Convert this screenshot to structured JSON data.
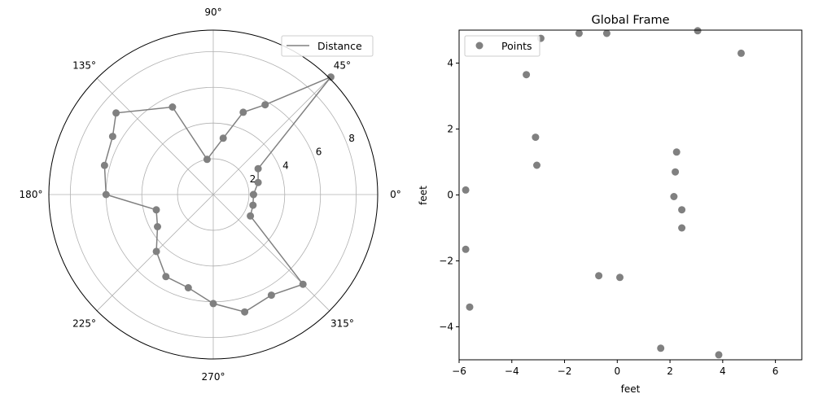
{
  "chart_data": [
    {
      "type": "line",
      "projection": "polar",
      "legend": {
        "label": "Distance",
        "placement": "top-right"
      },
      "theta_labels": [
        "0°",
        "45°",
        "90°",
        "135°",
        "180°",
        "225°",
        "270°",
        "315°"
      ],
      "r_ticks": [
        2,
        4,
        6,
        8
      ],
      "r_tick_labels": [
        "2",
        "4",
        "6",
        "8"
      ],
      "rlim": [
        0,
        9.2
      ],
      "grid": true,
      "color": "#808080",
      "points": [
        {
          "theta_deg": 0,
          "r": 2.25
        },
        {
          "theta_deg": 15,
          "r": 2.6
        },
        {
          "theta_deg": 30,
          "r": 2.9
        },
        {
          "theta_deg": 45,
          "r": 9.3
        },
        {
          "theta_deg": 60,
          "r": 5.8
        },
        {
          "theta_deg": 70,
          "r": 4.9
        },
        {
          "theta_deg": 80,
          "r": 3.2
        },
        {
          "theta_deg": 100,
          "r": 2.0
        },
        {
          "theta_deg": 115,
          "r": 5.4
        },
        {
          "theta_deg": 140,
          "r": 7.1
        },
        {
          "theta_deg": 150,
          "r": 6.5
        },
        {
          "theta_deg": 165,
          "r": 6.3
        },
        {
          "theta_deg": 180,
          "r": 6.0
        },
        {
          "theta_deg": 195,
          "r": 3.3
        },
        {
          "theta_deg": 210,
          "r": 3.6
        },
        {
          "theta_deg": 225,
          "r": 4.5
        },
        {
          "theta_deg": 240,
          "r": 5.3
        },
        {
          "theta_deg": 255,
          "r": 5.4
        },
        {
          "theta_deg": 270,
          "r": 6.1
        },
        {
          "theta_deg": 285,
          "r": 6.8
        },
        {
          "theta_deg": 300,
          "r": 6.5
        },
        {
          "theta_deg": 315,
          "r": 7.1
        },
        {
          "theta_deg": 330,
          "r": 2.4
        },
        {
          "theta_deg": 345,
          "r": 2.3
        },
        {
          "theta_deg": 360,
          "r": 2.25
        }
      ]
    },
    {
      "type": "scatter",
      "title": "Global Frame",
      "xlabel": "feet",
      "ylabel": "feet",
      "xlim": [
        -6,
        7
      ],
      "ylim": [
        -5,
        5
      ],
      "x_ticks": [
        -6,
        -4,
        -2,
        0,
        2,
        4,
        6
      ],
      "x_tick_labels": [
        "−6",
        "−4",
        "−2",
        "0",
        "2",
        "4",
        "6"
      ],
      "y_ticks": [
        -4,
        -2,
        0,
        2,
        4
      ],
      "y_tick_labels": [
        "−4",
        "−2",
        "0",
        "2",
        "4"
      ],
      "legend": {
        "label": "Points",
        "placement": "top-left"
      },
      "color": "#808080",
      "points": [
        {
          "x": -2.9,
          "y": 4.75
        },
        {
          "x": -1.45,
          "y": 4.9
        },
        {
          "x": -0.4,
          "y": 4.9
        },
        {
          "x": 3.05,
          "y": 4.98
        },
        {
          "x": 4.7,
          "y": 4.3
        },
        {
          "x": -3.45,
          "y": 3.65
        },
        {
          "x": -3.1,
          "y": 1.75
        },
        {
          "x": -3.05,
          "y": 0.9
        },
        {
          "x": 2.25,
          "y": 1.3
        },
        {
          "x": 2.2,
          "y": 0.7
        },
        {
          "x": 2.15,
          "y": -0.05
        },
        {
          "x": 2.45,
          "y": -0.45
        },
        {
          "x": 2.45,
          "y": -1.0
        },
        {
          "x": -5.75,
          "y": 0.15
        },
        {
          "x": -5.75,
          "y": -1.65
        },
        {
          "x": -5.6,
          "y": -3.4
        },
        {
          "x": -0.7,
          "y": -2.45
        },
        {
          "x": 0.1,
          "y": -2.5
        },
        {
          "x": 1.65,
          "y": -4.65
        },
        {
          "x": 3.85,
          "y": -4.85
        }
      ]
    }
  ]
}
